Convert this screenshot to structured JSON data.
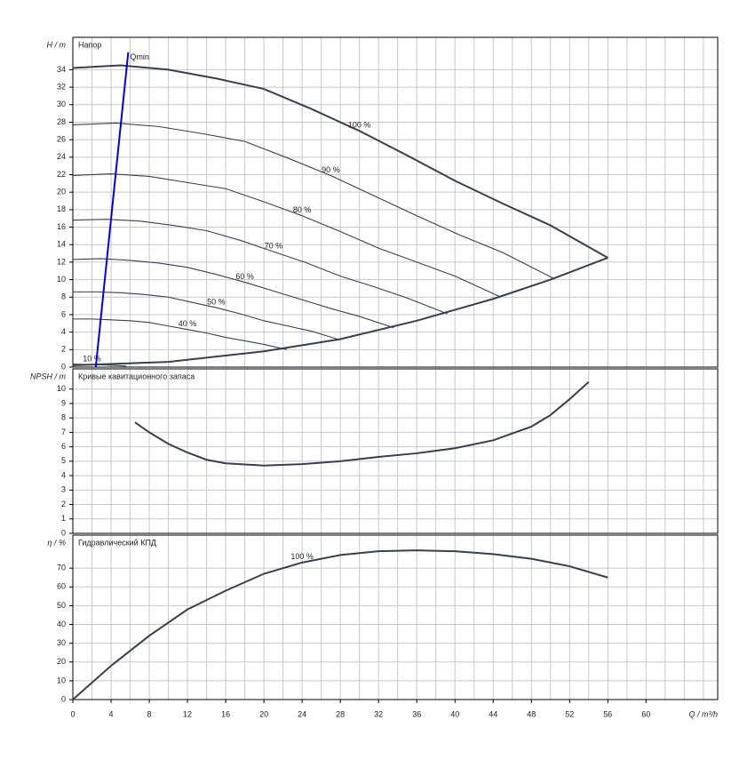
{
  "chart_data": [
    {
      "type": "line",
      "title": "Напор",
      "ylabel": "H / m",
      "xlim": [
        0,
        67.5
      ],
      "ylim": [
        0,
        37.7
      ],
      "yticks": [
        0,
        2,
        4,
        6,
        8,
        10,
        12,
        14,
        16,
        18,
        20,
        22,
        24,
        26,
        28,
        30,
        32,
        34
      ],
      "grid": true,
      "series": [
        {
          "name": "100 %",
          "color": "#3a3f4f",
          "x": [
            0,
            5,
            10,
            15,
            20,
            25,
            30,
            35,
            40,
            45,
            50,
            56
          ],
          "values": [
            34.2,
            34.5,
            34,
            33,
            31.8,
            29.5,
            27,
            24.2,
            21.3,
            18.7,
            16.2,
            12.5
          ]
        },
        {
          "name": "90 %",
          "color": "#3a3f4f",
          "x": [
            0,
            4.5,
            9,
            13.5,
            18,
            22.5,
            27,
            31.5,
            36,
            40.5,
            45,
            50.4
          ],
          "values": [
            27.7,
            27.9,
            27.5,
            26.7,
            25.8,
            23.9,
            21.9,
            19.6,
            17.3,
            15.1,
            13.1,
            10.1
          ]
        },
        {
          "name": "80 %",
          "color": "#3a3f4f",
          "x": [
            0,
            4,
            8,
            12,
            16,
            20,
            24,
            28,
            32,
            36,
            40,
            44.8
          ],
          "values": [
            21.9,
            22.1,
            21.8,
            21.1,
            20.4,
            18.9,
            17.3,
            15.5,
            13.6,
            12,
            10.4,
            8
          ]
        },
        {
          "name": "70 %",
          "color": "#3a3f4f",
          "x": [
            0,
            3.5,
            7,
            10.5,
            14,
            17.5,
            21,
            24.5,
            28,
            31.5,
            35,
            39.2
          ],
          "values": [
            16.8,
            16.9,
            16.7,
            16.2,
            15.6,
            14.5,
            13.2,
            11.9,
            10.4,
            9.2,
            7.9,
            6.1
          ]
        },
        {
          "name": "60 %",
          "color": "#3a3f4f",
          "x": [
            0,
            3,
            6,
            9,
            12,
            15,
            18,
            21,
            24,
            27,
            30,
            33.6
          ],
          "values": [
            12.3,
            12.4,
            12.2,
            11.9,
            11.4,
            10.6,
            9.7,
            8.7,
            7.7,
            6.7,
            5.8,
            4.5
          ]
        },
        {
          "name": "50 %",
          "color": "#3a3f4f",
          "x": [
            0,
            2.5,
            5,
            7.5,
            10,
            12.5,
            15,
            17.5,
            20,
            22.5,
            25,
            28
          ],
          "values": [
            8.6,
            8.6,
            8.5,
            8.3,
            8,
            7.4,
            6.8,
            6.1,
            5.3,
            4.7,
            4.1,
            3.1
          ]
        },
        {
          "name": "40 %",
          "color": "#3a3f4f",
          "x": [
            0,
            2,
            4,
            6,
            8,
            10,
            12,
            14,
            16,
            18,
            20,
            22.4
          ],
          "values": [
            5.5,
            5.5,
            5.4,
            5.3,
            5.1,
            4.7,
            4.3,
            3.9,
            3.4,
            3,
            2.6,
            2
          ]
        },
        {
          "name": "10 %",
          "color": "#3a3f4f",
          "x": [
            0,
            2,
            4,
            5.6
          ],
          "values": [
            0.34,
            0.3,
            0.22,
            0.12
          ]
        },
        {
          "color": "#3a3f4f",
          "x": [
            0,
            10,
            20,
            28,
            36,
            44,
            50,
            56
          ],
          "values": [
            0.2,
            0.6,
            1.8,
            3.2,
            5.3,
            7.8,
            10,
            12.5
          ]
        },
        {
          "name": "Qmin",
          "color": "#0000d0",
          "x": [
            2.4,
            5.8
          ],
          "values": [
            0,
            36
          ]
        }
      ]
    },
    {
      "type": "line",
      "title": "Кривые кавитационного запаса",
      "ylabel": "NPSH / m",
      "xlim": [
        0,
        67.5
      ],
      "ylim": [
        0,
        11.4
      ],
      "yticks": [
        0,
        1,
        2,
        3,
        4,
        5,
        6,
        7,
        8,
        9,
        10
      ],
      "grid": true,
      "series": [
        {
          "color": "#3a3f4f",
          "x": [
            6.5,
            8,
            10,
            12,
            14,
            16,
            20,
            24,
            28,
            32,
            36,
            40,
            44,
            48,
            50,
            52,
            54
          ],
          "values": [
            7.7,
            7,
            6.2,
            5.6,
            5.1,
            4.85,
            4.7,
            4.8,
            5,
            5.3,
            5.55,
            5.9,
            6.45,
            7.4,
            8.2,
            9.3,
            10.5
          ]
        }
      ]
    },
    {
      "type": "line",
      "title": "Гидравлический КПД",
      "ylabel": "η / %",
      "xlabel": "Q / m³/h",
      "xlim": [
        0,
        67.5
      ],
      "ylim": [
        0,
        87.6
      ],
      "yticks": [
        0,
        10,
        20,
        30,
        40,
        50,
        60,
        70
      ],
      "xticks": [
        0,
        4,
        8,
        12,
        16,
        20,
        24,
        28,
        32,
        36,
        40,
        44,
        48,
        52,
        56,
        60
      ],
      "grid": true,
      "series": [
        {
          "name": "100 %",
          "color": "#3a3f4f",
          "x": [
            0,
            4,
            8,
            12,
            16,
            20,
            24,
            28,
            32,
            36,
            40,
            44,
            48,
            52,
            56
          ],
          "values": [
            0,
            18,
            34,
            48,
            58,
            67,
            73,
            77,
            79,
            79.5,
            79,
            77.5,
            75,
            71,
            65
          ]
        }
      ]
    }
  ]
}
